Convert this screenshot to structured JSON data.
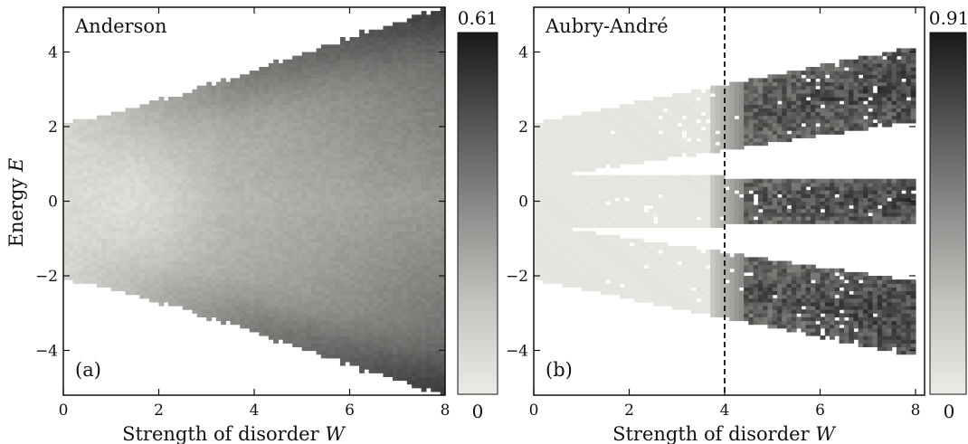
{
  "chart_data": [
    {
      "type": "heatmap",
      "panel_label": "(a)",
      "title": "Anderson",
      "xlabel": "Strength of disorder",
      "xlabel_var": "W",
      "ylabel": "Energy",
      "ylabel_var": "E",
      "xlim": [
        0,
        8
      ],
      "ylim": [
        -5.2,
        5.2
      ],
      "xticks": [
        "0",
        "2",
        "4",
        "6",
        "8"
      ],
      "yticks": [
        "−4",
        "−2",
        "0",
        "2",
        "4"
      ],
      "colorbar": {
        "min_label": "0",
        "max_label": "0.61",
        "min": 0,
        "max": 0.61
      },
      "band_edge": {
        "W": [
          0,
          1,
          2,
          3,
          4,
          5,
          6,
          7,
          8
        ],
        "Emax": [
          2.1,
          2.35,
          2.7,
          3.1,
          3.5,
          3.95,
          4.4,
          4.8,
          5.2
        ]
      },
      "colormap": "light-gray-to-black",
      "vline": null
    },
    {
      "type": "heatmap",
      "panel_label": "(b)",
      "title": "Aubry-André",
      "xlabel": "Strength of disorder",
      "xlabel_var": "W",
      "ylabel": "",
      "ylabel_var": "",
      "xlim": [
        0,
        8
      ],
      "ylim": [
        -5.2,
        5.2
      ],
      "xticks": [
        "0",
        "2",
        "4",
        "6",
        "8"
      ],
      "yticks": [
        "−4",
        "−2",
        "0",
        "2",
        "4"
      ],
      "colorbar": {
        "min_label": "0",
        "max_label": "0.91",
        "min": 0,
        "max": 0.91
      },
      "bands": [
        {
          "center_W0": 0,
          "center_W8": 0,
          "halfwidth_W0": 0.75,
          "halfwidth_W8": 0.55
        },
        {
          "center_W0": 1.35,
          "center_W8": 3.15,
          "halfwidth_W0": 0.75,
          "halfwidth_W8": 1.0
        },
        {
          "center_W0": -1.35,
          "center_W8": -3.15,
          "halfwidth_W0": 0.75,
          "halfwidth_W8": 1.0
        }
      ],
      "transition_W": 4,
      "colormap": "light-gray-to-black",
      "vline": 4
    }
  ],
  "colors": {
    "low": "#ecece6",
    "high": "#191919",
    "axis": "#111111"
  }
}
